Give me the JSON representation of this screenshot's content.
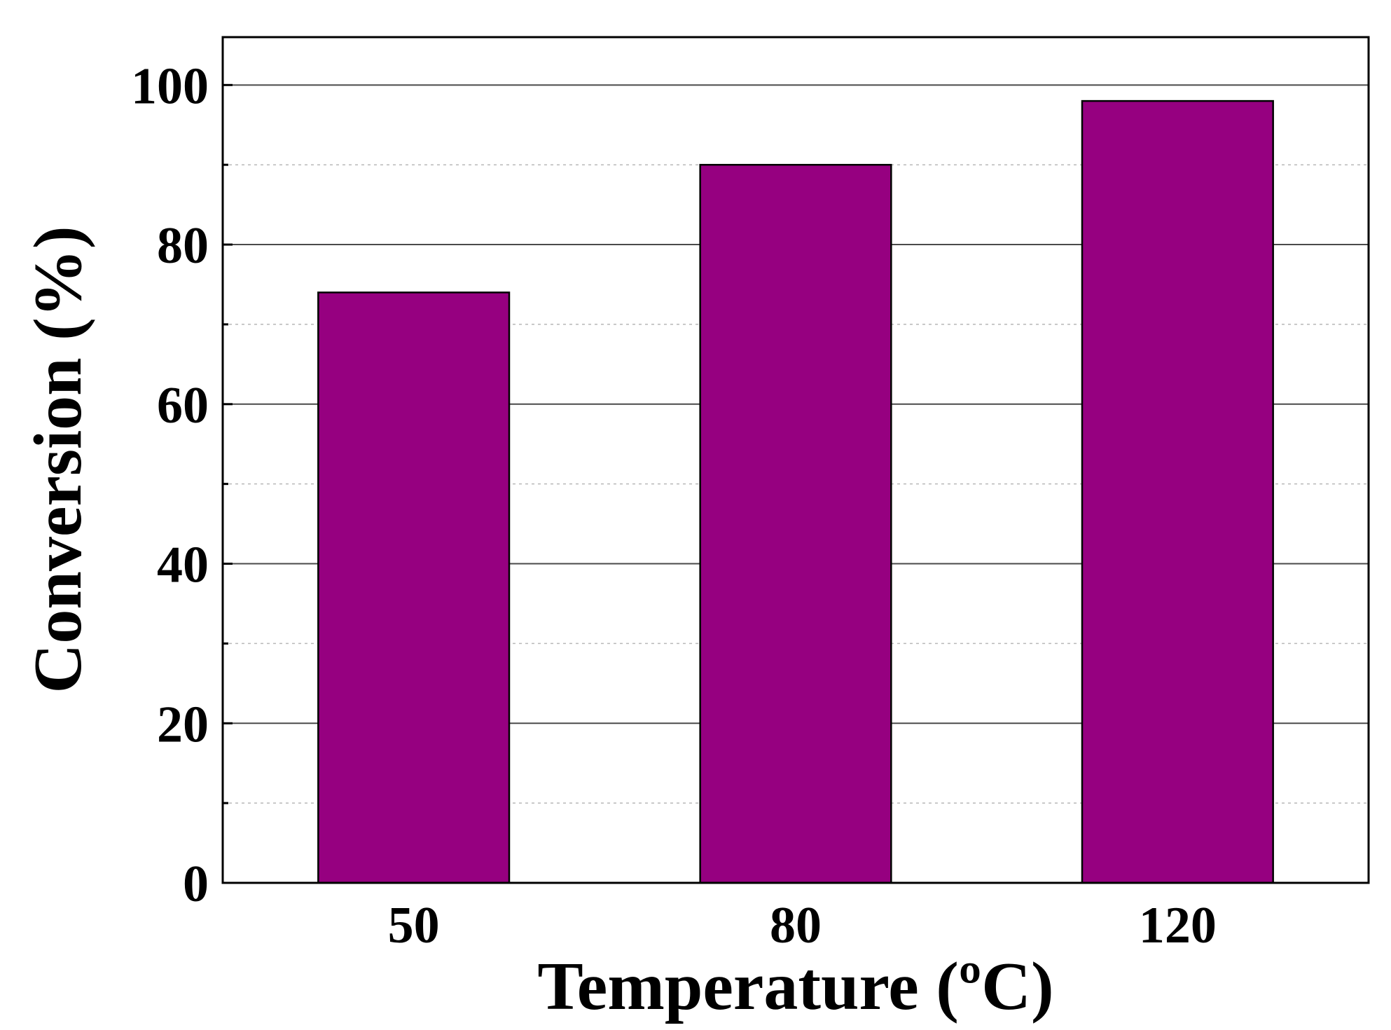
{
  "chart_data": {
    "type": "bar",
    "categories": [
      "50",
      "80",
      "120"
    ],
    "values": [
      74,
      90,
      98
    ],
    "title": "",
    "xlabel": "Temperature (ºC)",
    "ylabel": "Conversion (%)",
    "ylim": [
      0,
      106
    ],
    "yticks": [
      0,
      20,
      40,
      60,
      80,
      100
    ],
    "minor_yticks": [
      10,
      30,
      50,
      70,
      90
    ],
    "grid": true,
    "colors": {
      "bar": "#960080",
      "bar_edge": "#000000",
      "major_grid": "#4a4a4a",
      "minor_grid": "#b8b8b8",
      "frame": "#000000"
    }
  }
}
